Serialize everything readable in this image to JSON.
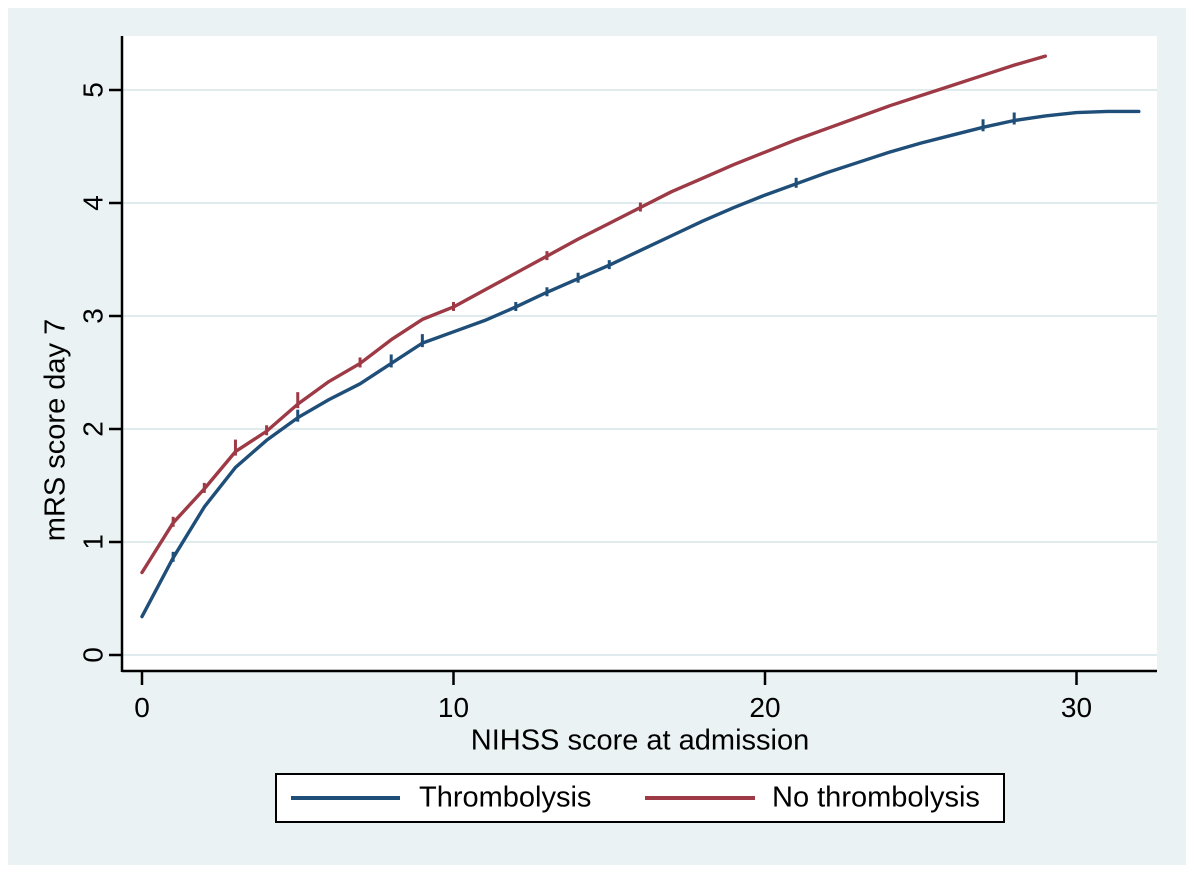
{
  "figure": {
    "background_color": "#eaf2f3",
    "plot_background_color": "#ffffff",
    "gridline_color": "#e0ebee",
    "axis_color": "#000000"
  },
  "legend": {
    "position": "bottom",
    "border_color": "#000000",
    "items": [
      {
        "label": "Thrombolysis",
        "color": "#1f4e79"
      },
      {
        "label": "No thrombolysis",
        "color": "#9d3a45"
      }
    ]
  },
  "chart_data": {
    "type": "line",
    "title": "",
    "xlabel": "NIHSS score at admission",
    "ylabel": "mRS score day 7",
    "x_ticks": [
      0,
      10,
      20,
      30
    ],
    "y_ticks": [
      0,
      1,
      2,
      3,
      4,
      5
    ],
    "xlim": [
      0,
      32.6
    ],
    "ylim": [
      -0.15,
      5.5
    ],
    "grid": "horizontal",
    "legend_position": "bottom",
    "series": [
      {
        "name": "Thrombolysis",
        "color": "#1f4e79",
        "x": [
          0,
          1,
          2,
          3,
          4,
          5,
          6,
          7,
          8,
          9,
          10,
          11,
          12,
          13,
          14,
          15,
          16,
          17,
          18,
          19,
          20,
          21,
          22,
          23,
          24,
          25,
          26,
          27,
          28,
          29,
          30,
          31,
          32
        ],
        "y": [
          0.34,
          0.86,
          1.31,
          1.66,
          1.9,
          2.1,
          2.26,
          2.4,
          2.58,
          2.76,
          2.86,
          2.96,
          3.08,
          3.21,
          3.33,
          3.45,
          3.58,
          3.71,
          3.84,
          3.96,
          4.07,
          4.17,
          4.27,
          4.36,
          4.45,
          4.53,
          4.6,
          4.67,
          4.73,
          4.77,
          4.8,
          4.81,
          4.81
        ],
        "jump_marks": [
          {
            "x": 1,
            "h": 10
          },
          {
            "x": 5,
            "h": 12
          },
          {
            "x": 8,
            "h": 13
          },
          {
            "x": 9,
            "h": 13
          },
          {
            "x": 12,
            "h": 9
          },
          {
            "x": 13,
            "h": 9
          },
          {
            "x": 14,
            "h": 10
          },
          {
            "x": 15,
            "h": 9
          },
          {
            "x": 21,
            "h": 10
          },
          {
            "x": 27,
            "h": 12
          },
          {
            "x": 28,
            "h": 12
          }
        ]
      },
      {
        "name": "No thrombolysis",
        "color": "#9d3a45",
        "x": [
          0,
          1,
          2,
          3,
          4,
          5,
          6,
          7,
          8,
          9,
          10,
          11,
          12,
          13,
          14,
          15,
          16,
          17,
          18,
          19,
          20,
          21,
          22,
          23,
          24,
          25,
          26,
          27,
          28,
          29
        ],
        "y": [
          0.73,
          1.17,
          1.47,
          1.8,
          1.98,
          2.22,
          2.42,
          2.58,
          2.79,
          2.97,
          3.08,
          3.23,
          3.38,
          3.53,
          3.68,
          3.82,
          3.96,
          4.1,
          4.22,
          4.34,
          4.45,
          4.56,
          4.66,
          4.76,
          4.86,
          4.95,
          5.04,
          5.13,
          5.22,
          5.3
        ],
        "jump_marks": [
          {
            "x": 1,
            "h": 10
          },
          {
            "x": 2,
            "h": 10
          },
          {
            "x": 3,
            "h": 16
          },
          {
            "x": 4,
            "h": 10
          },
          {
            "x": 5,
            "h": 16
          },
          {
            "x": 7,
            "h": 10
          },
          {
            "x": 10,
            "h": 9
          },
          {
            "x": 13,
            "h": 9
          },
          {
            "x": 16,
            "h": 9
          }
        ]
      }
    ]
  }
}
